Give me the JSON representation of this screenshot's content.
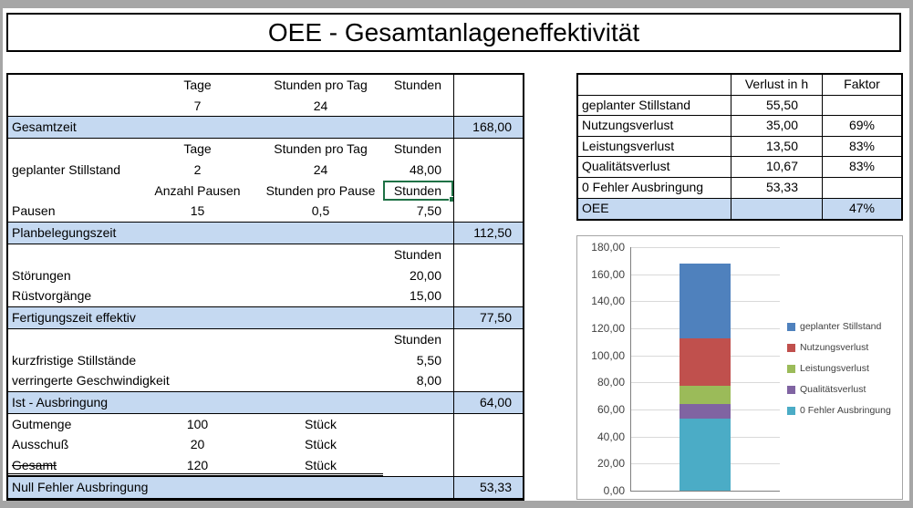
{
  "window": {
    "title": "OEE - Gesamtanlageneffektivität"
  },
  "left_table": {
    "rows": [
      {
        "cells": [
          "",
          "Tage",
          "Stunden pro Tag",
          "Stunden",
          ""
        ]
      },
      {
        "cells": [
          "",
          "7",
          "24",
          "",
          ""
        ]
      },
      {
        "summary": true,
        "label": "Gesamtzeit",
        "value": "168,00"
      },
      {
        "cells": [
          "",
          "Tage",
          "Stunden pro Tag",
          "Stunden",
          ""
        ]
      },
      {
        "cells": [
          "geplanter Stillstand",
          "2",
          "24",
          "48,00",
          ""
        ]
      },
      {
        "cells": [
          "",
          "Anzahl Pausen",
          "Stunden pro Pause",
          "Stunden",
          ""
        ],
        "selected_col": 3
      },
      {
        "cells": [
          "Pausen",
          "15",
          "0,5",
          "7,50",
          ""
        ]
      },
      {
        "summary": true,
        "label": "Planbelegungszeit",
        "value": "112,50"
      },
      {
        "cells": [
          "",
          "",
          "",
          "Stunden",
          ""
        ]
      },
      {
        "cells": [
          "Störungen",
          "",
          "",
          "20,00",
          ""
        ]
      },
      {
        "cells": [
          "Rüstvorgänge",
          "",
          "",
          "15,00",
          ""
        ]
      },
      {
        "summary": true,
        "label": "Fertigungszeit effektiv",
        "value": "77,50"
      },
      {
        "cells": [
          "",
          "",
          "",
          "Stunden",
          ""
        ]
      },
      {
        "cells": [
          "kurzfristige Stillstände",
          "",
          "",
          "5,50",
          ""
        ]
      },
      {
        "cells": [
          "verringerte Geschwindigkeit",
          "",
          "",
          "8,00",
          ""
        ]
      },
      {
        "summary": true,
        "label": "Ist - Ausbringung",
        "value": "64,00"
      },
      {
        "cells": [
          "Gutmenge",
          "100",
          "Stück",
          "",
          ""
        ]
      },
      {
        "cells": [
          "Ausschuß",
          "20",
          "Stück",
          "",
          ""
        ]
      },
      {
        "cells": [
          "Gesamt",
          "120",
          "Stück",
          "",
          ""
        ],
        "strike_col": 0,
        "double_underline": true
      },
      {
        "summary": true,
        "label": "Null Fehler Ausbringung",
        "value": "53,33"
      }
    ]
  },
  "loss_table": {
    "headers": [
      "",
      "Verlust in h",
      "Faktor"
    ],
    "rows": [
      {
        "label": "geplanter Stillstand",
        "verlust": "55,50",
        "faktor": ""
      },
      {
        "label": "Nutzungsverlust",
        "verlust": "35,00",
        "faktor": "69%"
      },
      {
        "label": "Leistungsverlust",
        "verlust": "13,50",
        "faktor": "83%"
      },
      {
        "label": "Qualitätsverlust",
        "verlust": "10,67",
        "faktor": "83%"
      },
      {
        "label": "0 Fehler Ausbringung",
        "verlust": "53,33",
        "faktor": ""
      },
      {
        "label": "OEE",
        "verlust": "",
        "faktor": "47%",
        "highlight": true
      }
    ]
  },
  "chart_data": {
    "type": "bar",
    "stacked": true,
    "categories": [
      ""
    ],
    "series": [
      {
        "name": "geplanter Stillstand",
        "value": 55.5,
        "color": "#4F81BD"
      },
      {
        "name": "Nutzungsverlust",
        "value": 35.0,
        "color": "#C0504D"
      },
      {
        "name": "Leistungsverlust",
        "value": 13.5,
        "color": "#9BBB59"
      },
      {
        "name": "Qualitätsverlust",
        "value": 10.67,
        "color": "#8064A2"
      },
      {
        "name": "0 Fehler Ausbringung",
        "value": 53.33,
        "color": "#4BACC6"
      }
    ],
    "title": "",
    "xlabel": "",
    "ylabel": "",
    "ylim": [
      0,
      180
    ],
    "ytick_step": 20,
    "ytick_labels": [
      "0,00",
      "20,00",
      "40,00",
      "60,00",
      "80,00",
      "100,00",
      "120,00",
      "140,00",
      "160,00",
      "180,00"
    ],
    "grid": true,
    "legend_position": "right"
  },
  "colors": {
    "highlight_row": "#c5d9f1",
    "selection_green": "#1e7145",
    "frame_gray": "#a6a6a6"
  }
}
